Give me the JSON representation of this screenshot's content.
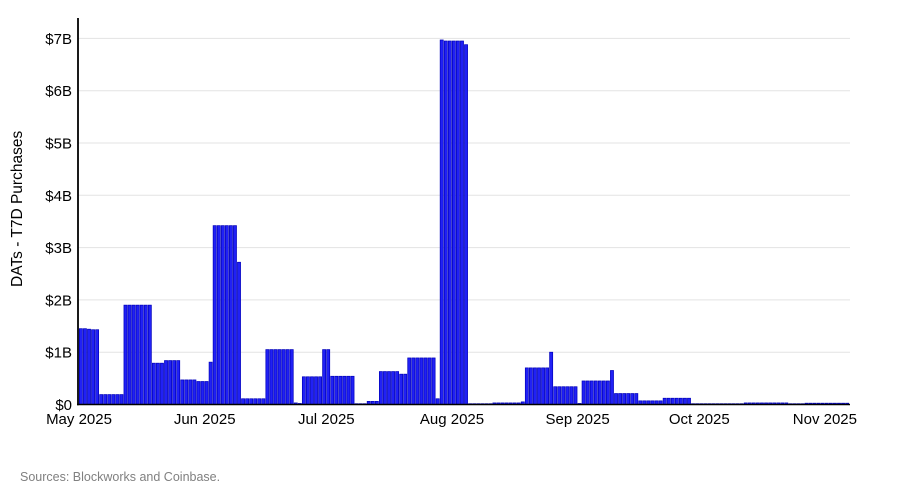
{
  "chart_data": {
    "type": "bar",
    "title": "",
    "xlabel": "",
    "ylabel": "DATs - T7D Purchases",
    "unit": "$B",
    "frequency": "daily",
    "start_date": "2025-05-01",
    "end_date": "2025-11-06",
    "ylim": [
      0,
      7.4
    ],
    "grid": true,
    "legend": "none",
    "yticks": [
      "$0",
      "$1B",
      "$2B",
      "$3B",
      "$4B",
      "$5B",
      "$6B",
      "$7B"
    ],
    "xticks": [
      "May 2025",
      "Jun 2025",
      "Jul 2025",
      "Aug 2025",
      "Sep 2025",
      "Oct 2025",
      "Nov 2025"
    ],
    "month_tick_day_offsets": [
      0,
      31,
      61,
      92,
      123,
      153,
      184
    ],
    "bar_color": "#2121f5",
    "bar_edge_color": "#0000bb",
    "grid_color": "#e3e3e3",
    "axis_color": "#000000",
    "values": [
      1.45,
      1.45,
      1.44,
      1.43,
      1.43,
      0.19,
      0.19,
      0.19,
      0.19,
      0.19,
      0.19,
      1.9,
      1.9,
      1.9,
      1.9,
      1.9,
      1.9,
      1.9,
      0.79,
      0.79,
      0.79,
      0.84,
      0.84,
      0.84,
      0.84,
      0.47,
      0.47,
      0.47,
      0.47,
      0.44,
      0.44,
      0.44,
      0.81,
      3.42,
      3.42,
      3.42,
      3.42,
      3.42,
      3.42,
      2.72,
      0.11,
      0.11,
      0.11,
      0.11,
      0.11,
      0.11,
      1.05,
      1.05,
      1.05,
      1.05,
      1.05,
      1.05,
      1.05,
      0.03,
      0.02,
      0.53,
      0.53,
      0.53,
      0.53,
      0.53,
      1.05,
      1.05,
      0.54,
      0.54,
      0.54,
      0.54,
      0.54,
      0.54,
      0.01,
      0.01,
      0.01,
      0.06,
      0.06,
      0.06,
      0.63,
      0.63,
      0.63,
      0.63,
      0.63,
      0.58,
      0.58,
      0.89,
      0.89,
      0.89,
      0.89,
      0.89,
      0.89,
      0.89,
      0.11,
      6.97,
      6.95,
      6.95,
      6.95,
      6.95,
      6.95,
      6.88,
      0.01,
      0.01,
      0.01,
      0.01,
      0.01,
      0.01,
      0.03,
      0.03,
      0.03,
      0.03,
      0.03,
      0.03,
      0.03,
      0.05,
      0.7,
      0.7,
      0.7,
      0.7,
      0.7,
      0.7,
      1.0,
      0.34,
      0.34,
      0.34,
      0.34,
      0.34,
      0.34,
      0.02,
      0.45,
      0.45,
      0.45,
      0.45,
      0.45,
      0.45,
      0.45,
      0.65,
      0.21,
      0.21,
      0.21,
      0.21,
      0.21,
      0.21,
      0.07,
      0.07,
      0.07,
      0.07,
      0.07,
      0.07,
      0.12,
      0.12,
      0.12,
      0.12,
      0.12,
      0.12,
      0.12,
      0.015,
      0.015,
      0.015,
      0.015,
      0.015,
      0.015,
      0.015,
      0.015,
      0.015,
      0.015,
      0.015,
      0.015,
      0.015,
      0.03,
      0.03,
      0.03,
      0.03,
      0.03,
      0.03,
      0.03,
      0.03,
      0.03,
      0.03,
      0.03,
      0.01,
      0.01,
      0.01,
      0.01,
      0.025,
      0.025,
      0.025,
      0.025,
      0.025,
      0.025,
      0.025,
      0.025,
      0.025,
      0.025,
      0.025
    ]
  },
  "footer": {
    "source": "Sources: Blockworks and Coinbase."
  }
}
